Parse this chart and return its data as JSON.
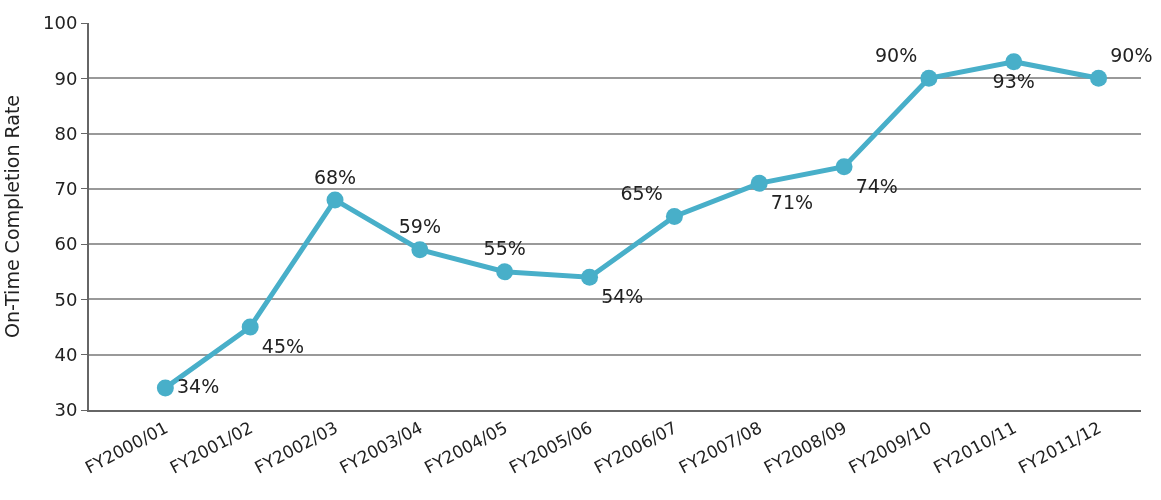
{
  "chart_data": {
    "type": "line",
    "ylabel": "On-Time Completion Rate",
    "categories": [
      "FY2000/01",
      "FY2001/02",
      "FY2002/03",
      "FY2003/04",
      "FY2004/05",
      "FY2005/06",
      "FY2006/07",
      "FY2007/08",
      "FY2008/09",
      "FY2009/10",
      "FY2010/11",
      "FY2011/12"
    ],
    "series": [
      {
        "color": "#48afc9",
        "values": [
          34,
          45,
          68,
          59,
          55,
          54,
          65,
          71,
          74,
          90,
          93,
          90
        ],
        "value_labels": [
          "34%",
          "45%",
          "68%",
          "59%",
          "55%",
          "54%",
          "65%",
          "71%",
          "74%",
          "90%",
          "93%",
          "90%"
        ]
      }
    ],
    "ylim": [
      30,
      100
    ],
    "yticks": [
      30,
      40,
      50,
      60,
      70,
      80,
      90,
      100
    ],
    "grid": "y",
    "marker": "circle",
    "line_style": "solid"
  }
}
